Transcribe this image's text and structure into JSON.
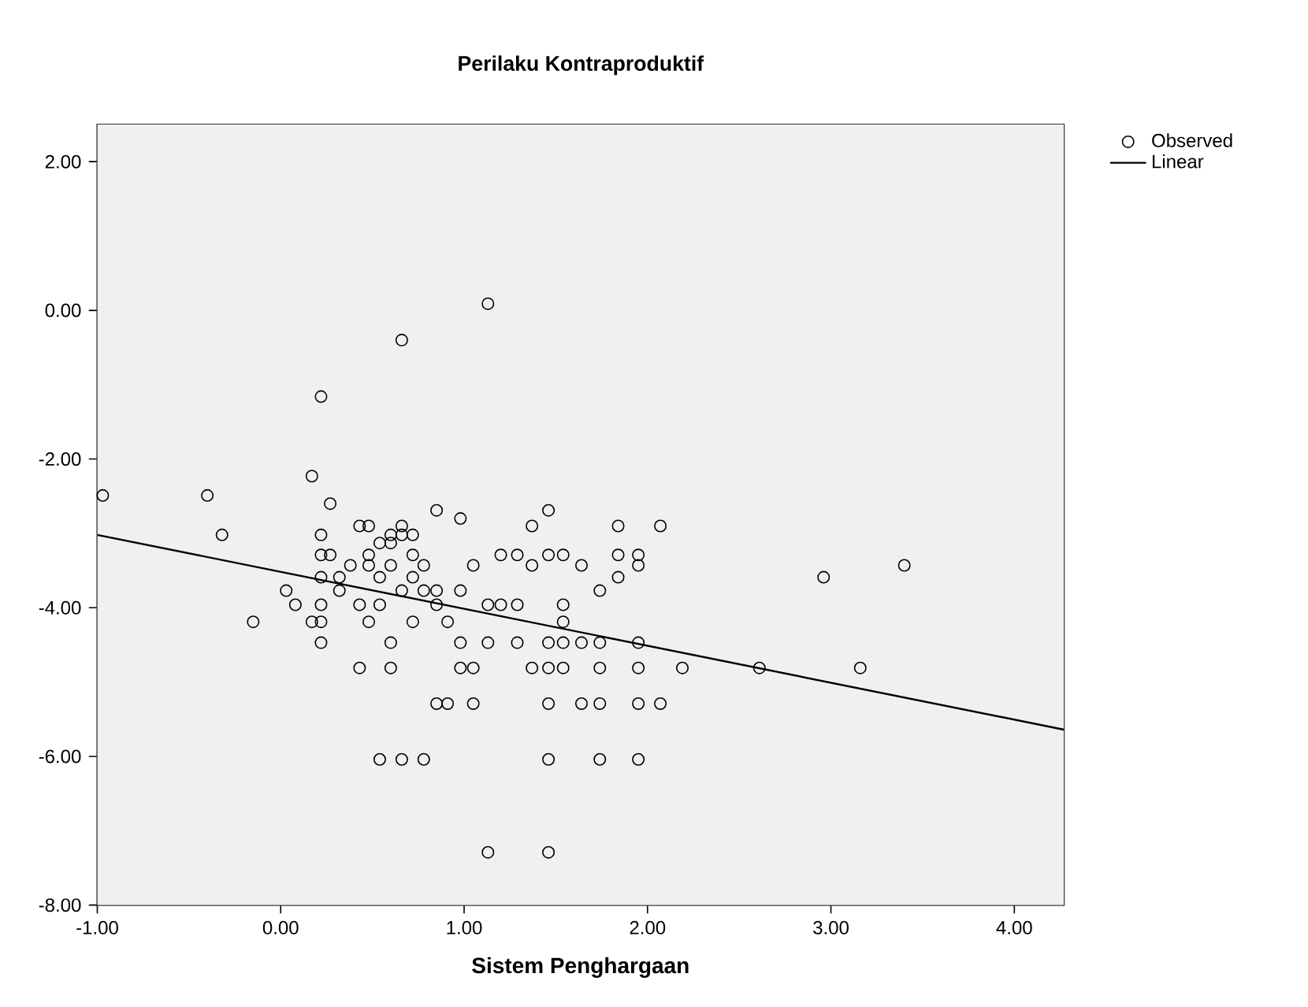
{
  "chart_data": {
    "type": "scatter",
    "title": "Perilaku Kontraproduktif",
    "xlabel": "Sistem Penghargaan",
    "xlim": [
      -1,
      4.27
    ],
    "ylim": [
      -8,
      2.5
    ],
    "xticks": [
      {
        "value": -1,
        "label": "-1.00"
      },
      {
        "value": 0,
        "label": "0.00"
      },
      {
        "value": 1,
        "label": "1.00"
      },
      {
        "value": 2,
        "label": "2.00"
      },
      {
        "value": 3,
        "label": "3.00"
      },
      {
        "value": 4,
        "label": "4.00"
      }
    ],
    "yticks": [
      {
        "value": -8,
        "label": "-8.00"
      },
      {
        "value": -6,
        "label": "-6.00"
      },
      {
        "value": -4,
        "label": "-4.00"
      },
      {
        "value": -2,
        "label": "-2.00"
      },
      {
        "value": 0,
        "label": "0.00"
      },
      {
        "value": 2,
        "label": "2.00"
      }
    ],
    "legend": "top right",
    "series": [
      {
        "name": "Observed",
        "marker": "circle",
        "color": "#000000",
        "x": [
          0.17,
          -0.97,
          -0.4,
          0.27,
          0.85,
          1.46,
          0.98,
          0.43,
          0.48,
          0.66,
          1.37,
          1.84,
          2.07,
          -0.32,
          0.22,
          0.6,
          0.66,
          0.72,
          0.54,
          0.6,
          0.22,
          0.27,
          0.48,
          0.72,
          1.2,
          1.29,
          1.46,
          1.54,
          1.84,
          1.95,
          0.38,
          0.48,
          0.6,
          0.78,
          1.05,
          1.37,
          1.64,
          1.95,
          3.4,
          0.22,
          0.32,
          0.54,
          0.72,
          1.84,
          2.96,
          0.03,
          0.32,
          0.66,
          0.78,
          0.85,
          0.98,
          1.74,
          0.08,
          0.22,
          0.43,
          0.54,
          0.85,
          1.13,
          1.2,
          1.29,
          1.54,
          -0.15,
          0.17,
          0.22,
          0.48,
          0.72,
          0.91,
          1.54,
          0.22,
          0.6,
          0.98,
          1.13,
          1.29,
          1.46,
          1.54,
          1.64,
          1.74,
          1.95,
          0.43,
          0.6,
          0.98,
          1.05,
          1.37,
          1.46,
          1.54,
          1.74,
          1.95,
          2.19,
          2.61,
          3.16,
          0.85,
          0.91,
          1.05,
          1.46,
          1.64,
          1.74,
          1.95,
          2.07,
          0.54,
          0.66,
          0.78,
          1.46,
          1.74,
          1.95,
          1.13,
          1.46,
          0.22,
          0.66,
          1.13
        ],
        "values": [
          -2.23,
          -2.49,
          -2.49,
          -2.6,
          -2.69,
          -2.69,
          -2.8,
          -2.9,
          -2.9,
          -2.9,
          -2.9,
          -2.9,
          -2.9,
          -3.02,
          -3.02,
          -3.02,
          -3.02,
          -3.02,
          -3.13,
          -3.13,
          -3.29,
          -3.29,
          -3.29,
          -3.29,
          -3.29,
          -3.29,
          -3.29,
          -3.29,
          -3.29,
          -3.29,
          -3.43,
          -3.43,
          -3.43,
          -3.43,
          -3.43,
          -3.43,
          -3.43,
          -3.43,
          -3.43,
          -3.59,
          -3.59,
          -3.59,
          -3.59,
          -3.59,
          -3.59,
          -3.77,
          -3.77,
          -3.77,
          -3.77,
          -3.77,
          -3.77,
          -3.77,
          -3.96,
          -3.96,
          -3.96,
          -3.96,
          -3.96,
          -3.96,
          -3.96,
          -3.96,
          -3.96,
          -4.19,
          -4.19,
          -4.19,
          -4.19,
          -4.19,
          -4.19,
          -4.19,
          -4.47,
          -4.47,
          -4.47,
          -4.47,
          -4.47,
          -4.47,
          -4.47,
          -4.47,
          -4.47,
          -4.47,
          -4.81,
          -4.81,
          -4.81,
          -4.81,
          -4.81,
          -4.81,
          -4.81,
          -4.81,
          -4.81,
          -4.81,
          -4.81,
          -4.81,
          -5.29,
          -5.29,
          -5.29,
          -5.29,
          -5.29,
          -5.29,
          -5.29,
          -5.29,
          -6.04,
          -6.04,
          -6.04,
          -6.04,
          -6.04,
          -6.04,
          -7.29,
          -7.29,
          -1.16,
          -0.4,
          0.09
        ]
      },
      {
        "name": "Linear",
        "type": "line",
        "line_style": "solid",
        "color": "#000000",
        "x": [
          -1,
          4.27
        ],
        "values": [
          -3.02,
          -5.64
        ]
      }
    ]
  }
}
